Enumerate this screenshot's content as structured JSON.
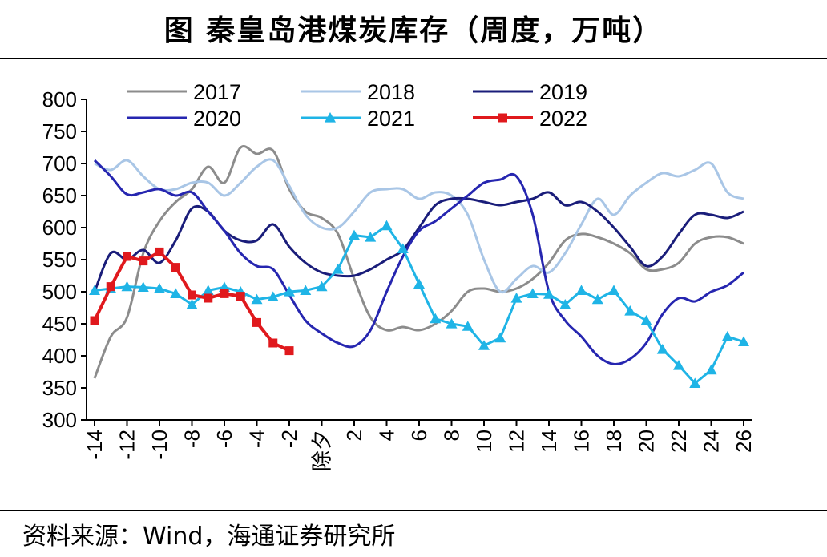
{
  "title": "图 秦皇岛港煤炭库存（周度，万吨）",
  "source": "资料来源：Wind，海通证券研究所",
  "chart_data": {
    "type": "line",
    "title": "图 秦皇岛港煤炭库存（周度，万吨）",
    "xlabel": "",
    "ylabel": "",
    "ylim": [
      300,
      800
    ],
    "yticks": [
      "800",
      "750",
      "700",
      "650",
      "600",
      "550",
      "500",
      "450",
      "400",
      "350",
      "300"
    ],
    "yticks_values": [
      800,
      750,
      700,
      650,
      600,
      550,
      500,
      450,
      400,
      350,
      300
    ],
    "x_range": [
      -14,
      26
    ],
    "x_zero_label": "除夕",
    "xticks": [
      "-14",
      "-12",
      "-10",
      "-8",
      "-6",
      "-4",
      "-2",
      "除夕",
      "2",
      "4",
      "6",
      "8",
      "10",
      "12",
      "14",
      "16",
      "18",
      "20",
      "22",
      "24",
      "26"
    ],
    "xticks_values": [
      -14,
      -12,
      -10,
      -8,
      -6,
      -4,
      -2,
      0,
      2,
      4,
      6,
      8,
      10,
      12,
      14,
      16,
      18,
      20,
      22,
      24,
      26
    ],
    "legend": [
      "2017",
      "2018",
      "2019",
      "2020",
      "2021",
      "2022"
    ],
    "colors": {
      "2017": "#8c8c8c",
      "2018": "#a9c6e6",
      "2019": "#1a1d7a",
      "2020": "#2626b0",
      "2021": "#1fb4e6",
      "2022": "#e0191d"
    },
    "series": [
      {
        "name": "2017",
        "x": [
          -14,
          -13,
          -12,
          -11,
          -10,
          -9,
          -8,
          -7,
          -6,
          -5,
          -4,
          -3,
          -2,
          -1,
          0,
          1,
          2,
          3,
          4,
          5,
          6,
          7,
          8,
          9,
          10,
          11,
          12,
          13,
          14,
          15,
          16,
          17,
          18,
          19,
          20,
          21,
          22,
          23,
          24,
          25,
          26
        ],
        "values": [
          365,
          430,
          460,
          560,
          610,
          640,
          660,
          695,
          670,
          725,
          715,
          720,
          660,
          625,
          615,
          590,
          520,
          460,
          440,
          445,
          440,
          450,
          470,
          500,
          505,
          500,
          505,
          520,
          545,
          580,
          590,
          585,
          575,
          560,
          535,
          535,
          545,
          575,
          585,
          585,
          575
        ]
      },
      {
        "name": "2018",
        "x": [
          -14,
          -13,
          -12,
          -11,
          -10,
          -9,
          -8,
          -7,
          -6,
          -5,
          -4,
          -3,
          -2,
          -1,
          0,
          1,
          2,
          3,
          4,
          5,
          6,
          7,
          8,
          9,
          10,
          11,
          12,
          13,
          14,
          15,
          16,
          17,
          18,
          19,
          20,
          21,
          22,
          23,
          24,
          25,
          26
        ],
        "values": [
          700,
          690,
          705,
          680,
          660,
          660,
          670,
          670,
          650,
          670,
          695,
          705,
          665,
          620,
          600,
          600,
          625,
          655,
          660,
          660,
          645,
          655,
          650,
          620,
          550,
          500,
          520,
          540,
          530,
          560,
          605,
          645,
          620,
          650,
          670,
          685,
          680,
          690,
          700,
          655,
          645
        ]
      },
      {
        "name": "2019",
        "x": [
          -14,
          -13,
          -12,
          -11,
          -10,
          -9,
          -8,
          -7,
          -6,
          -5,
          -4,
          -3,
          -2,
          -1,
          0,
          1,
          2,
          3,
          4,
          5,
          6,
          7,
          8,
          9,
          10,
          11,
          12,
          13,
          14,
          15,
          16,
          17,
          18,
          19,
          20,
          21,
          22,
          23,
          24,
          25,
          26
        ],
        "values": [
          500,
          560,
          550,
          565,
          545,
          580,
          630,
          625,
          595,
          580,
          580,
          605,
          570,
          545,
          530,
          525,
          525,
          535,
          550,
          565,
          600,
          635,
          645,
          645,
          640,
          635,
          640,
          645,
          655,
          635,
          640,
          625,
          600,
          570,
          540,
          555,
          590,
          620,
          620,
          615,
          625
        ]
      },
      {
        "name": "2020",
        "x": [
          -14,
          -13,
          -12,
          -11,
          -10,
          -9,
          -8,
          -7,
          -6,
          -5,
          -4,
          -3,
          -2,
          -1,
          0,
          1,
          2,
          3,
          4,
          5,
          6,
          7,
          8,
          9,
          10,
          11,
          12,
          13,
          14,
          15,
          16,
          17,
          18,
          19,
          20,
          21,
          22,
          23,
          24,
          25,
          26
        ],
        "values": [
          705,
          680,
          652,
          655,
          660,
          650,
          655,
          625,
          595,
          560,
          540,
          535,
          495,
          455,
          435,
          420,
          415,
          440,
          500,
          555,
          595,
          610,
          630,
          650,
          670,
          675,
          680,
          620,
          500,
          455,
          430,
          400,
          387,
          395,
          420,
          465,
          490,
          485,
          500,
          510,
          530
        ]
      },
      {
        "name": "2021",
        "x": [
          -14,
          -13,
          -12,
          -11,
          -10,
          -9,
          -8,
          -7,
          -6,
          -5,
          -4,
          -3,
          -2,
          -1,
          0,
          1,
          2,
          3,
          4,
          5,
          6,
          7,
          8,
          9,
          10,
          11,
          12,
          13,
          14,
          15,
          16,
          17,
          18,
          19,
          20,
          21,
          22,
          23,
          24,
          25,
          26
        ],
        "values": [
          502,
          505,
          508,
          507,
          505,
          497,
          480,
          502,
          507,
          500,
          488,
          492,
          500,
          502,
          508,
          535,
          588,
          585,
          603,
          567,
          512,
          458,
          450,
          446,
          416,
          428,
          490,
          497,
          496,
          480,
          502,
          488,
          502,
          470,
          455,
          410,
          385,
          357,
          378,
          430,
          422
        ]
      },
      {
        "name": "2022",
        "x": [
          -14,
          -13,
          -12,
          -11,
          -10,
          -9,
          -8,
          -7,
          -6,
          -5,
          -4,
          -3,
          -2
        ],
        "values": [
          455,
          508,
          555,
          548,
          562,
          538,
          495,
          490,
          497,
          493,
          452,
          420,
          408
        ]
      }
    ]
  }
}
